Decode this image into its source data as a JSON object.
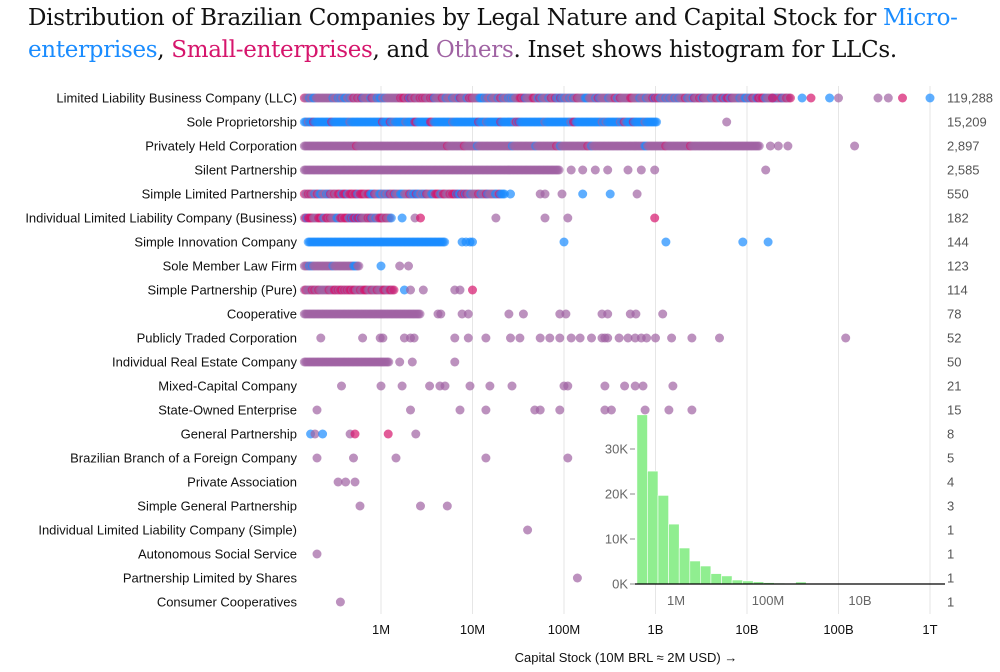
{
  "title": {
    "part1": "Distribution of Brazilian Companies by Legal Nature and Capital Stock for ",
    "micro": "Micro-enterprises",
    "sep1": ", ",
    "small": "Small-enterprises",
    "sep2": ", and ",
    "others": "Others",
    "part2": ". Inset shows histogram for LLCs."
  },
  "chart_data": [
    {
      "type": "scatter",
      "subtype": "strip",
      "xlabel": "Capital Stock (10M BRL ≈ 2M USD) →",
      "xscale": "log",
      "xlim": [
        145000,
        1400000000000
      ],
      "x_ticks": [
        {
          "v": 1000000.0,
          "label": "1M"
        },
        {
          "v": 10000000.0,
          "label": "10M"
        },
        {
          "v": 100000000.0,
          "label": "100M"
        },
        {
          "v": 1000000000.0,
          "label": "1B"
        },
        {
          "v": 10000000000.0,
          "label": "10B"
        },
        {
          "v": 100000000000.0,
          "label": "100B"
        },
        {
          "v": 1000000000000.0,
          "label": "1T"
        }
      ],
      "grid": "vertical",
      "colors": {
        "micro": "#1a8cff",
        "small": "#d6156c",
        "other": "#a063a3"
      },
      "rows": [
        {
          "label": "Limited Liability Business Company (LLC)",
          "count": "119,288",
          "band": [
            145000,
            30000000000.0
          ],
          "mix": {
            "micro": 0.2,
            "small": 0.15,
            "other": 0.65
          },
          "points": [
            [
              19000000000.0,
              "s"
            ],
            [
              40000000000.0,
              "m"
            ],
            [
              50000000000.0,
              "s"
            ],
            [
              80000000000.0,
              "m"
            ],
            [
              100000000000.0,
              "o"
            ],
            [
              270000000000.0,
              "o"
            ],
            [
              350000000000.0,
              "o"
            ],
            [
              500000000000.0,
              "s"
            ],
            [
              1000000000000.0,
              "m"
            ]
          ]
        },
        {
          "label": "Sole Proprietorship",
          "count": "15,209",
          "band": [
            145000,
            1050000000.0
          ],
          "mix": {
            "micro": 0.9,
            "small": 0.05,
            "other": 0.05
          },
          "points": [
            [
              6000000000.0,
              "o"
            ]
          ]
        },
        {
          "label": "Privately Held Corporation",
          "count": "2,897",
          "band": [
            145000,
            14000000000.0
          ],
          "mix": {
            "micro": 0.01,
            "small": 0.02,
            "other": 0.97
          },
          "points": [
            [
              18000000000.0,
              "o"
            ],
            [
              22000000000.0,
              "o"
            ],
            [
              28000000000.0,
              "o"
            ],
            [
              150000000000.0,
              "o"
            ]
          ]
        },
        {
          "label": "Silent Partnership",
          "count": "2,585",
          "band": [
            145000,
            90000000.0
          ],
          "mix": {
            "micro": 0,
            "small": 0,
            "other": 1
          },
          "points": [
            120000000.0,
            160000000.0,
            220000000.0,
            300000000.0,
            500000000.0,
            700000000.0,
            980000000.0,
            16000000000.0
          ]
        },
        {
          "label": "Simple Limited Partnership",
          "count": "550",
          "band": [
            145000,
            23000000.0
          ],
          "mix": {
            "micro": 0.3,
            "small": 0.25,
            "other": 0.45
          },
          "points": [
            [
              26000000.0,
              "m"
            ],
            [
              55000000.0,
              "o"
            ],
            [
              62000000.0,
              "o"
            ],
            [
              95000000.0,
              "o"
            ],
            [
              160000000.0,
              "m"
            ],
            [
              320000000.0,
              "m"
            ],
            [
              630000000.0,
              "o"
            ]
          ]
        },
        {
          "label": "Individual Limited Liability Company (Business)",
          "count": "182",
          "band": [
            145000,
            1300000.0
          ],
          "mix": {
            "micro": 0.15,
            "small": 0.45,
            "other": 0.4
          },
          "points": [
            [
              1700000.0,
              "m"
            ],
            [
              2350000.0,
              "o"
            ],
            [
              2700000.0,
              "s"
            ],
            [
              18000000.0,
              "o"
            ],
            [
              62000000.0,
              "o"
            ],
            [
              110000000.0,
              "o"
            ],
            [
              980000000.0,
              "s"
            ]
          ]
        },
        {
          "label": "Simple Innovation Company",
          "count": "144",
          "band": [
            160000,
            5000000.0
          ],
          "mix": {
            "micro": 1,
            "small": 0,
            "other": 0
          },
          "points": [
            [
              7700000.0,
              "m"
            ],
            [
              8500000.0,
              "m"
            ],
            [
              9400000.0,
              "m"
            ],
            [
              10000000.0,
              "m"
            ],
            [
              100000000.0,
              "m"
            ],
            [
              1300000000.0,
              "m"
            ],
            [
              9000000000.0,
              "m"
            ],
            [
              17000000000.0,
              "m"
            ]
          ]
        },
        {
          "label": "Sole Member Law Firm",
          "count": "123",
          "band": [
            145000,
            590000
          ],
          "mix": {
            "micro": 0.1,
            "small": 0,
            "other": 0.9
          },
          "points": [
            [
              1000000.0,
              "m"
            ],
            1600000.0,
            2000000.0
          ]
        },
        {
          "label": "Simple Partnership (Pure)",
          "count": "114",
          "band": [
            145000,
            1400000.0
          ],
          "mix": {
            "micro": 0,
            "small": 0.4,
            "other": 0.6
          },
          "points": [
            [
              1800000.0,
              "m"
            ],
            2100000.0,
            2900000.0,
            6400000.0,
            7300000.0,
            [
              10000000.0,
              "s"
            ]
          ]
        },
        {
          "label": "Cooperative",
          "count": "78",
          "band": [
            145000,
            2700000.0
          ],
          "mix": {
            "micro": 0,
            "small": 0,
            "other": 1
          },
          "points": [
            4200000.0,
            4500000.0,
            7700000.0,
            9000000.0,
            25000000.0,
            36000000.0,
            90000000.0,
            105000000.0,
            260000000.0,
            300000000.0,
            530000000.0,
            610000000.0,
            1200000000.0
          ]
        },
        {
          "label": "Publicly Traded Corporation",
          "count": "52",
          "band": null,
          "points": [
            220000.0,
            630000.0,
            980000.0,
            1050000.0,
            1800000.0,
            2100000.0,
            2300000.0,
            6400000.0,
            9000000.0,
            14000000.0,
            26000000.0,
            33000000.0,
            55000000.0,
            70000000.0,
            90000000.0,
            120000000.0,
            150000000.0,
            200000000.0,
            260000000.0,
            280000000.0,
            300000000.0,
            400000000.0,
            500000000.0,
            600000000.0,
            700000000.0,
            800000000.0,
            1000000000.0,
            1500000000.0,
            2500000000.0,
            5000000000.0,
            120000000000.0
          ]
        },
        {
          "label": "Individual Real Estate Company",
          "count": "50",
          "band": [
            145000,
            1250000.0
          ],
          "mix": {
            "micro": 0,
            "small": 0,
            "other": 1
          },
          "points": [
            1600000.0,
            2200000.0,
            6400000.0
          ]
        },
        {
          "label": "Mixed-Capital Company",
          "count": "21",
          "band": null,
          "points": [
            370000.0,
            1000000.0,
            1700000.0,
            3400000.0,
            4400000.0,
            5000000.0,
            9400000.0,
            15500000.0,
            27000000.0,
            100000000.0,
            110000000.0,
            280000000.0,
            460000000.0,
            600000000.0,
            730000000.0,
            1550000000.0
          ]
        },
        {
          "label": "State-Owned Enterprise",
          "count": "15",
          "band": null,
          "points": [
            200000.0,
            2100000.0,
            7300000.0,
            14000000.0,
            48000000.0,
            55000000.0,
            90000000.0,
            280000000.0,
            330000000.0,
            770000000.0,
            1400000000.0,
            2500000000.0
          ]
        },
        {
          "label": "General Partnership",
          "count": "8",
          "band": null,
          "points": [
            [
              170000.0,
              "m"
            ],
            190000.0,
            [
              230000.0,
              "m"
            ],
            460000.0,
            [
              520000.0,
              "s"
            ],
            [
              1200000.0,
              "s"
            ],
            2400000.0
          ]
        },
        {
          "label": "Brazilian Branch of a Foreign Company",
          "count": "5",
          "band": null,
          "points": [
            200000.0,
            500000.0,
            1460000.0,
            14000000.0,
            110000000.0
          ]
        },
        {
          "label": "Private Association",
          "count": "4",
          "band": null,
          "points": [
            340000.0,
            410000.0,
            520000.0
          ]
        },
        {
          "label": "Simple General Partnership",
          "count": "3",
          "band": null,
          "points": [
            590000.0,
            2700000.0,
            5300000.0
          ]
        },
        {
          "label": "Individual Limited Liability Company (Simple)",
          "count": "1",
          "band": null,
          "points": [
            40000000.0
          ]
        },
        {
          "label": "Autonomous Social Service",
          "count": "1",
          "band": null,
          "points": [
            200000.0
          ]
        },
        {
          "label": "Partnership Limited by Shares",
          "count": "1",
          "band": null,
          "points": [
            140000000.0
          ]
        },
        {
          "label": "Consumer Cooperatives",
          "count": "1",
          "band": null,
          "points": [
            360000.0
          ]
        }
      ]
    },
    {
      "type": "bar",
      "subtype": "histogram",
      "xscale": "log",
      "bin_start": 141000,
      "bin_log_width": 0.23,
      "counts": [
        37600,
        25100,
        19700,
        13300,
        8000,
        5100,
        4000,
        2300,
        1800,
        900,
        700,
        500,
        300,
        200,
        100,
        450,
        0,
        0,
        0,
        0,
        0,
        0,
        0,
        0,
        0,
        150
      ],
      "x_ticks": [
        {
          "v": 1000000.0,
          "label": "1M"
        },
        {
          "v": 100000000.0,
          "label": "100M"
        },
        {
          "v": 10000000000.0,
          "label": "10B"
        }
      ],
      "y_ticks": [
        {
          "v": 0,
          "label": "0K"
        },
        {
          "v": 10000,
          "label": "10K"
        },
        {
          "v": 20000,
          "label": "20K"
        },
        {
          "v": 30000,
          "label": "30K"
        }
      ],
      "color": "#90ee90"
    }
  ]
}
